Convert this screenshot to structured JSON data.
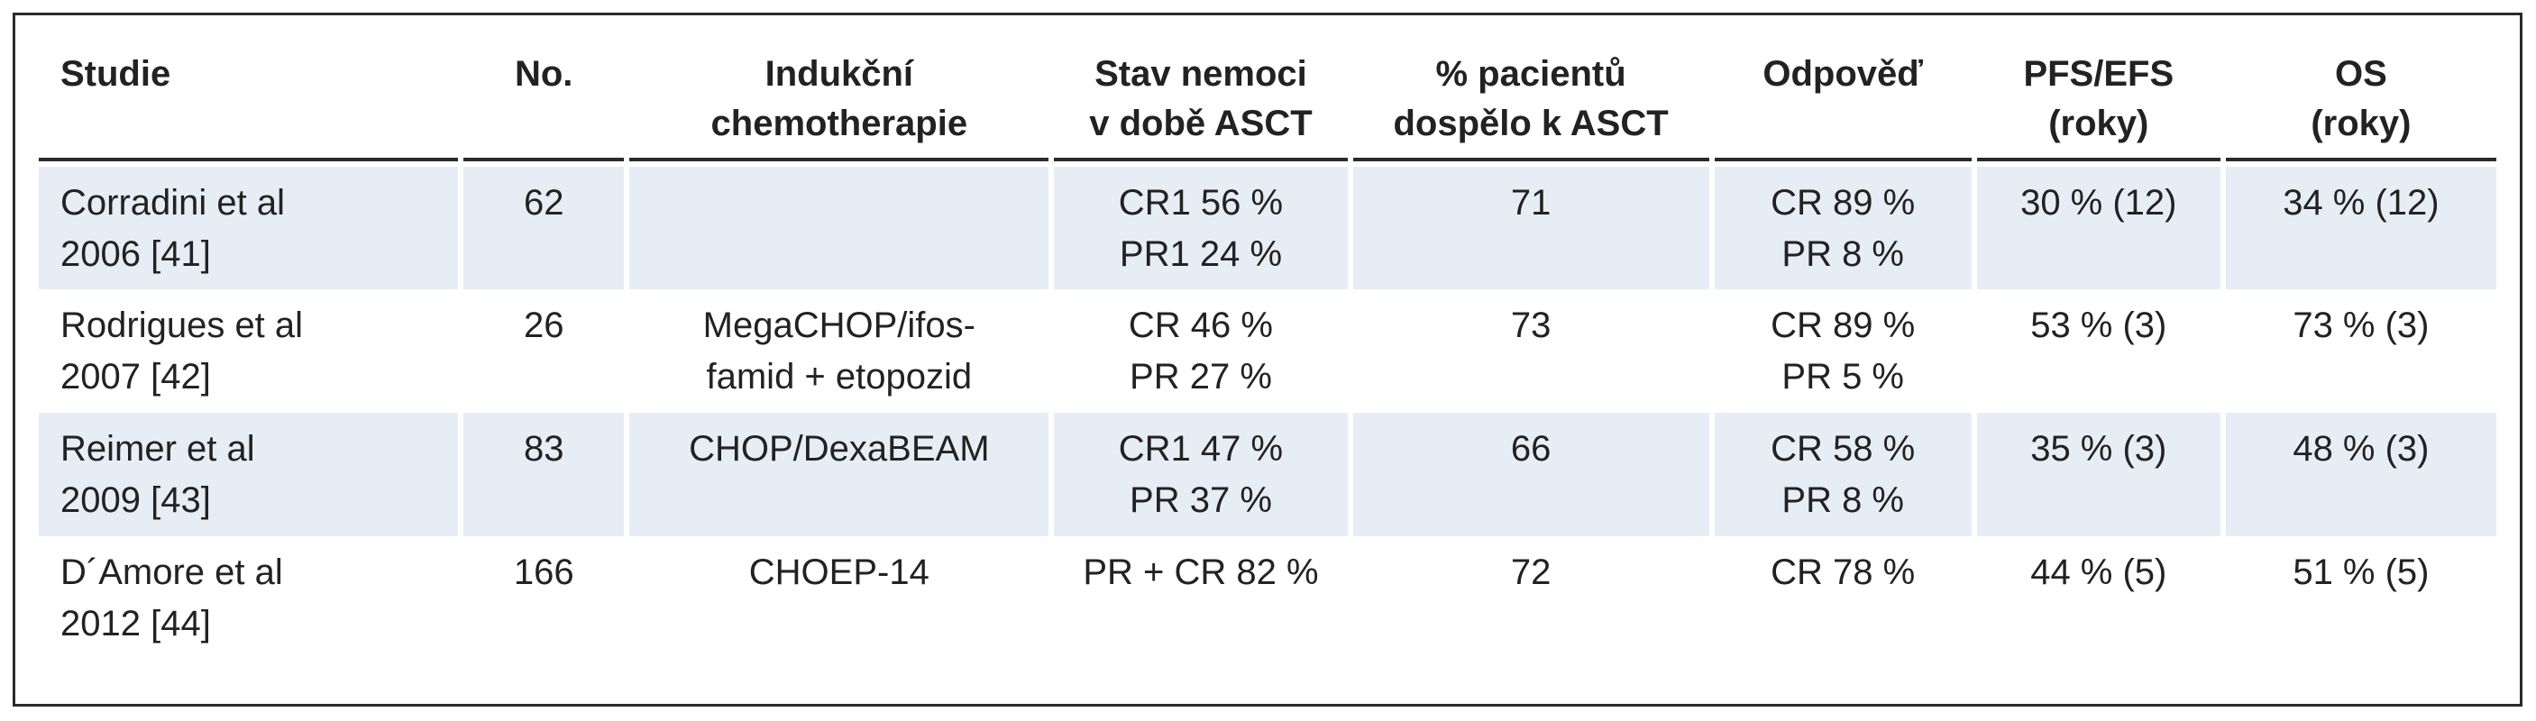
{
  "headers": {
    "studie": [
      "Studie"
    ],
    "no": [
      "No."
    ],
    "indukce": [
      "Indukční",
      "chemotherapie"
    ],
    "stav": [
      "Stav nemoci",
      "v době ASCT"
    ],
    "pacientu": [
      "% pacientů",
      "dospělo k ASCT"
    ],
    "odpoved": [
      "Odpověď"
    ],
    "pfs": [
      "PFS/EFS",
      "(roky)"
    ],
    "os": [
      "OS",
      "(roky)"
    ]
  },
  "rows": [
    {
      "studie": [
        "Corradini et al",
        "2006 [41]"
      ],
      "no": [
        "62"
      ],
      "indukce": [],
      "stav": [
        "CR1 56 %",
        "PR1 24 %"
      ],
      "pacientu": [
        "71"
      ],
      "odpoved": [
        "CR 89 %",
        "PR 8 %"
      ],
      "pfs": [
        "30 % (12)"
      ],
      "os": [
        "34 % (12)"
      ]
    },
    {
      "studie": [
        "Rodrigues et al",
        "2007 [42]"
      ],
      "no": [
        "26"
      ],
      "indukce": [
        "MegaCHOP/ifos-",
        "famid + etopozid"
      ],
      "stav": [
        "CR 46 %",
        "PR 27 %"
      ],
      "pacientu": [
        "73"
      ],
      "odpoved": [
        "CR 89 %",
        "PR 5 %"
      ],
      "pfs": [
        "53 % (3)"
      ],
      "os": [
        "73 % (3)"
      ]
    },
    {
      "studie": [
        "Reimer et al",
        "2009 [43]"
      ],
      "no": [
        "83"
      ],
      "indukce": [
        "CHOP/DexaBEAM"
      ],
      "stav": [
        "CR1 47 %",
        "PR 37 %"
      ],
      "pacientu": [
        "66"
      ],
      "odpoved": [
        "CR 58 %",
        "PR 8 %"
      ],
      "pfs": [
        "35 % (3)"
      ],
      "os": [
        "48 % (3)"
      ]
    },
    {
      "studie": [
        "D´Amore et al",
        "2012 [44]"
      ],
      "no": [
        "166"
      ],
      "indukce": [
        "CHOEP-14"
      ],
      "stav": [
        "PR + CR 82 %"
      ],
      "pacientu": [
        "72"
      ],
      "odpoved": [
        "CR 78 %"
      ],
      "pfs": [
        "44 % (5)"
      ],
      "os": [
        "51 % (5)"
      ]
    }
  ]
}
